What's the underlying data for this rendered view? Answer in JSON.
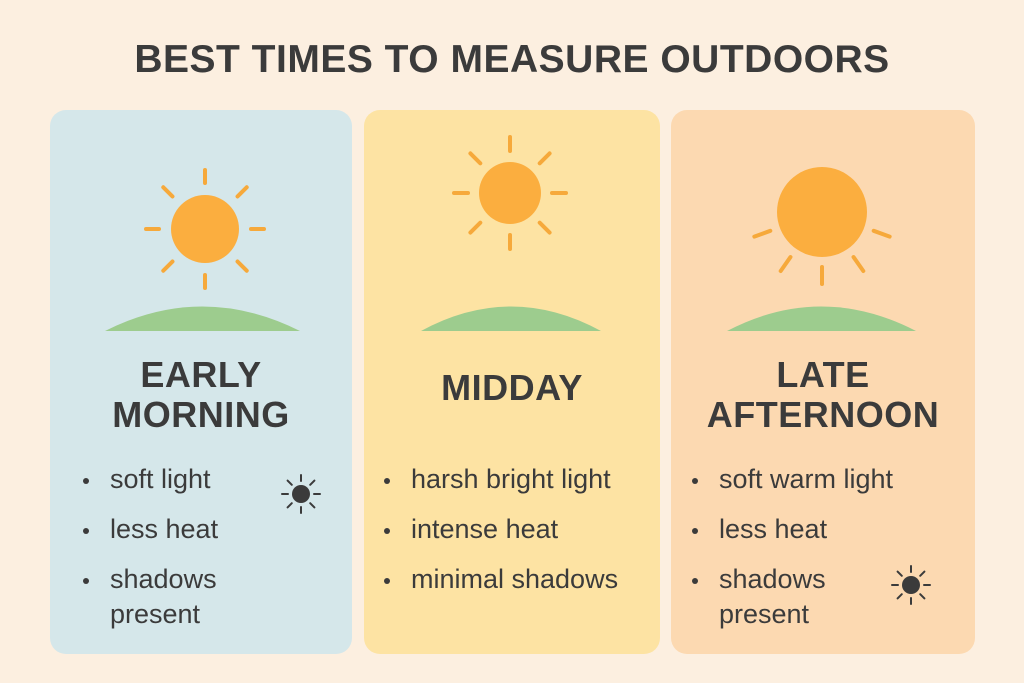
{
  "title": "BEST TIMES TO MEASURE OUTDOORS",
  "cards": [
    {
      "title": "EARLY MORNING",
      "bullets": [
        "soft light",
        "less heat",
        "shadows present"
      ]
    },
    {
      "title": "MIDDAY",
      "bullets": [
        "harsh bright light",
        "intense heat",
        "minimal shadows"
      ]
    },
    {
      "title": "LATE AFTERNOON",
      "bullets": [
        "soft warm light",
        "less heat",
        "shadows present"
      ]
    }
  ]
}
